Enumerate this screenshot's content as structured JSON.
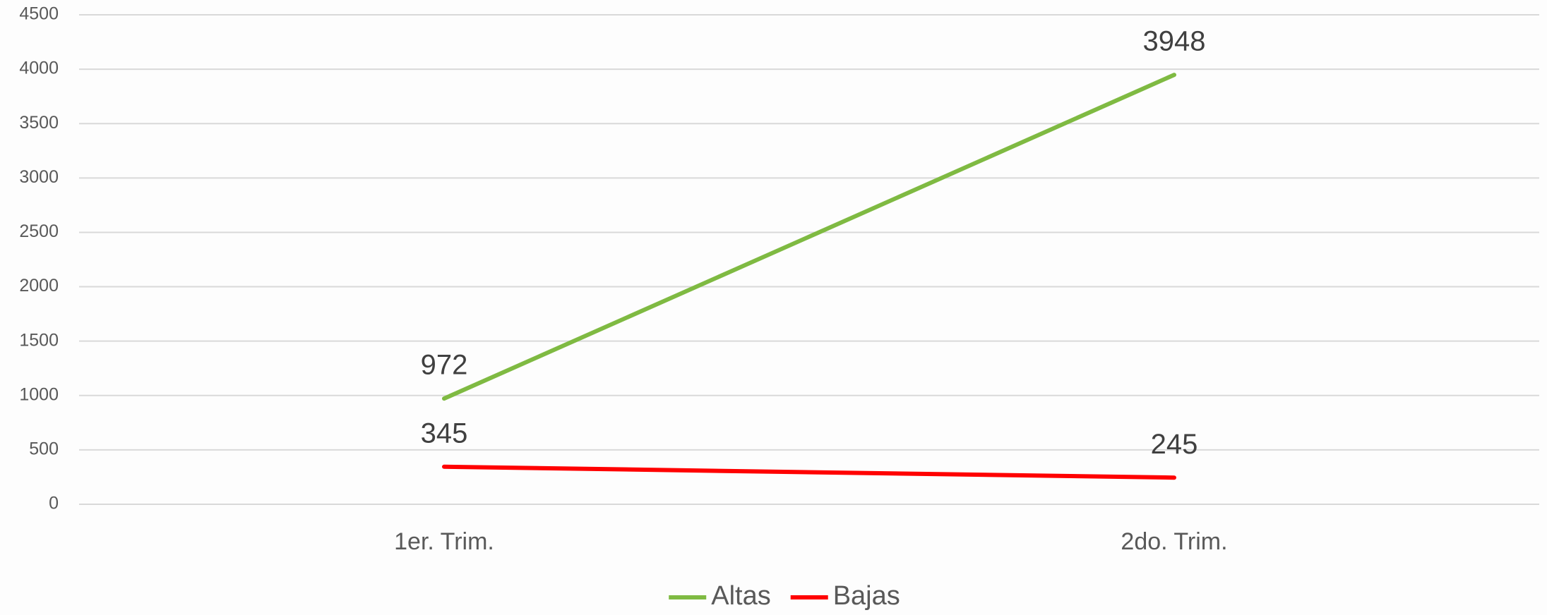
{
  "chart_data": {
    "type": "line",
    "categories": [
      "1er. Trim.",
      "2do. Trim."
    ],
    "series": [
      {
        "name": "Altas",
        "color": "#7fba42",
        "values": [
          972,
          3948
        ]
      },
      {
        "name": "Bajas",
        "color": "#ff0000",
        "values": [
          345,
          245
        ]
      }
    ],
    "ylim": [
      0,
      4500
    ],
    "yticks": [
      0,
      500,
      1000,
      1500,
      2000,
      2500,
      3000,
      3500,
      4000,
      4500
    ],
    "grid": true,
    "legend": "bottom"
  }
}
